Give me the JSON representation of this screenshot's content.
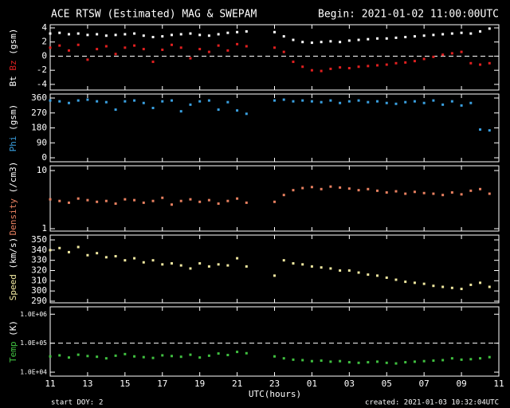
{
  "header": {
    "title": "ACE RTSW (Estimated) MAG & SWEPAM",
    "begin": "Begin: 2021-01-02 11:00:00UTC"
  },
  "xaxis": {
    "xlabel": "UTC(hours)",
    "xlim": [
      11,
      35
    ],
    "xticks": [
      11,
      13,
      15,
      17,
      19,
      21,
      23,
      {
        "value": 25,
        "label": "01"
      },
      {
        "value": 27,
        "label": "03"
      },
      {
        "value": 29,
        "label": "05"
      },
      {
        "value": 31,
        "label": "07"
      },
      {
        "value": 33,
        "label": "09"
      },
      {
        "value": 35,
        "label": "11"
      }
    ],
    "x": [
      11,
      11.5,
      12,
      12.5,
      13,
      13.5,
      14,
      14.5,
      15,
      15.5,
      16,
      16.5,
      17,
      17.5,
      18,
      18.5,
      19,
      19.5,
      20,
      20.5,
      21,
      21.5,
      22,
      22.5,
      23,
      23.5,
      24,
      24.5,
      25,
      25.5,
      26,
      26.5,
      27,
      27.5,
      28,
      28.5,
      29,
      29.5,
      30,
      30.5,
      31,
      31.5,
      32,
      32.5,
      33,
      33.5,
      34,
      34.5,
      35
    ]
  },
  "chart_data": [
    {
      "type": "scatter",
      "ylabel": "(gsm)",
      "ylim": [
        -4.8,
        4.45
      ],
      "yticks": [
        -4,
        -2,
        0,
        2,
        4
      ],
      "refline": 0,
      "series": [
        {
          "name": "Bt",
          "color": "#ffffff",
          "values": [
            3.2,
            3.3,
            3.1,
            3.2,
            3.0,
            3.1,
            2.9,
            3.0,
            3.1,
            3.2,
            2.9,
            2.7,
            2.8,
            3.0,
            3.1,
            3.2,
            3.0,
            2.9,
            3.1,
            3.3,
            3.4,
            3.5,
            null,
            null,
            3.4,
            2.8,
            2.3,
            2.0,
            1.9,
            2.0,
            2.1,
            2.0,
            2.2,
            2.3,
            2.4,
            2.5,
            2.5,
            2.6,
            2.7,
            2.8,
            2.9,
            3.0,
            3.1,
            3.2,
            3.3,
            3.2,
            3.5,
            3.9,
            null
          ]
        },
        {
          "name": "Bz",
          "color": "#e02020",
          "values": [
            1.2,
            1.5,
            0.8,
            1.6,
            -0.5,
            1.0,
            1.4,
            0.3,
            1.2,
            1.5,
            1.0,
            -0.8,
            0.9,
            1.6,
            1.2,
            -0.3,
            1.0,
            0.6,
            1.5,
            0.8,
            1.7,
            1.4,
            null,
            null,
            1.2,
            0.6,
            -0.8,
            -1.5,
            -2.0,
            -2.1,
            -1.8,
            -1.6,
            -1.7,
            -1.5,
            -1.4,
            -1.3,
            -1.2,
            -1.0,
            -0.9,
            -0.7,
            -0.4,
            -0.1,
            0.2,
            0.4,
            0.6,
            -1.0,
            -1.2,
            -1.0,
            null
          ]
        }
      ]
    },
    {
      "type": "scatter",
      "ylabel": "(gsm)",
      "ylim": [
        -24,
        384
      ],
      "yticks": [
        0,
        90,
        180,
        270,
        360
      ],
      "series": [
        {
          "name": "Phi",
          "color": "#3aa0e0",
          "values": [
            345,
            340,
            330,
            345,
            350,
            340,
            335,
            290,
            340,
            345,
            330,
            300,
            340,
            345,
            280,
            320,
            340,
            345,
            290,
            335,
            285,
            265,
            null,
            null,
            345,
            350,
            340,
            345,
            340,
            335,
            345,
            330,
            340,
            345,
            335,
            340,
            330,
            325,
            335,
            340,
            330,
            345,
            320,
            340,
            315,
            330,
            170,
            165,
            null
          ]
        }
      ]
    },
    {
      "type": "scatter",
      "ylabel": "(/cm3)",
      "log": true,
      "ylim": [
        0.91,
        12.1
      ],
      "yticks": [
        1,
        10
      ],
      "series": [
        {
          "name": "Density",
          "color": "#e88060",
          "values": [
            3.2,
            3.0,
            2.8,
            3.3,
            3.1,
            2.9,
            3.0,
            2.7,
            3.2,
            3.1,
            2.8,
            3.0,
            3.4,
            2.6,
            3.0,
            3.2,
            2.9,
            3.1,
            2.7,
            3.0,
            3.3,
            2.8,
            null,
            null,
            2.9,
            3.8,
            4.6,
            5.0,
            5.2,
            4.8,
            5.3,
            5.1,
            4.9,
            4.6,
            4.8,
            4.5,
            4.2,
            4.4,
            4.0,
            4.3,
            4.1,
            4.0,
            3.8,
            4.2,
            3.9,
            4.5,
            4.8,
            4.0,
            null
          ]
        }
      ]
    },
    {
      "type": "scatter",
      "ylabel": "(km/s)",
      "ylim": [
        288.4,
        354.7
      ],
      "yticks": [
        290,
        300,
        310,
        320,
        330,
        340,
        350
      ],
      "series": [
        {
          "name": "Speed",
          "color": "#f0e8a0",
          "values": [
            340,
            342,
            338,
            343,
            335,
            337,
            333,
            334,
            330,
            332,
            328,
            330,
            326,
            327,
            325,
            322,
            327,
            324,
            326,
            325,
            332,
            324,
            null,
            null,
            315,
            330,
            327,
            326,
            324,
            323,
            322,
            320,
            320,
            318,
            316,
            315,
            313,
            311,
            309,
            308,
            307,
            305,
            304,
            303,
            302,
            306,
            308,
            304,
            null
          ]
        }
      ]
    },
    {
      "type": "scatter",
      "ylabel": "(K)",
      "log": true,
      "ylim": [
        7300,
        1800000
      ],
      "refline": 100000,
      "yticks": [
        {
          "value": 10000,
          "label": "1.0E+04"
        },
        {
          "value": 100000,
          "label": "1.0E+05"
        },
        {
          "value": 1000000,
          "label": "1.0E+06"
        }
      ],
      "series": [
        {
          "name": "Temp",
          "color": "#40c040",
          "values": [
            35000,
            38000,
            32000,
            40000,
            36000,
            34000,
            30000,
            37000,
            42000,
            35000,
            33000,
            31000,
            38000,
            36000,
            34000,
            40000,
            32000,
            37000,
            44000,
            39000,
            50000,
            45000,
            null,
            null,
            35000,
            30000,
            27000,
            26000,
            24000,
            25000,
            23000,
            24000,
            22000,
            21000,
            22000,
            23000,
            21000,
            20000,
            22000,
            23000,
            24000,
            25000,
            26000,
            30000,
            27000,
            28000,
            30000,
            33000,
            null
          ]
        }
      ]
    }
  ],
  "footer": {
    "start_doy_label": "start DOY:",
    "start_doy": 2,
    "created": "created: 2021-01-03 10:32:04UTC"
  }
}
